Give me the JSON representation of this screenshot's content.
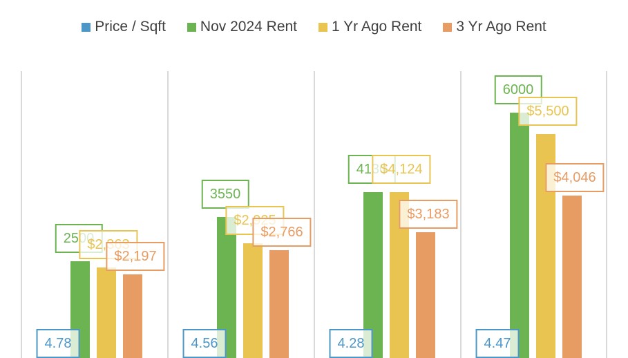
{
  "legend": {
    "items": [
      {
        "label": "Price / Sqft",
        "color": "#4C96C8"
      },
      {
        "label": "Nov 2024 Rent",
        "color": "#6CB451"
      },
      {
        "label": "1 Yr Ago Rent",
        "color": "#E9C451"
      },
      {
        "label": "3 Yr Ago Rent",
        "color": "#E79C64"
      }
    ]
  },
  "chart_data": {
    "type": "bar",
    "title": "",
    "categories": [
      "",
      "",
      "",
      ""
    ],
    "series": [
      {
        "name": "Price / Sqft",
        "color": "#4C96C8",
        "values": [
          4.78,
          4.56,
          4.28,
          4.47
        ],
        "labels": [
          "4.78",
          "4.56",
          "4.28",
          "4.47"
        ]
      },
      {
        "name": "Nov 2024 Rent",
        "color": "#6CB451",
        "values": [
          2500,
          3550,
          4130,
          6000
        ],
        "labels": [
          "2500",
          "3550",
          "4130",
          "6000"
        ]
      },
      {
        "name": "1 Yr Ago Rent",
        "color": "#E9C451",
        "values": [
          2363,
          2925,
          4124,
          5500
        ],
        "labels": [
          "$2,363",
          "$2,925",
          "$4,124",
          "$5,500"
        ]
      },
      {
        "name": "3 Yr Ago Rent",
        "color": "#E79C64",
        "values": [
          2197,
          2766,
          3183,
          4046
        ],
        "labels": [
          "$2,197",
          "$2,766",
          "$3,183",
          "$4,046"
        ]
      }
    ],
    "data_labels": true,
    "data_label_style": "boxed, series-colored border and text, translucent white fill",
    "legend_position": "top",
    "value_axis_visible": false,
    "category_axis_visible": false,
    "gridlines": "vertical category separators only",
    "gridline_color": "#D9D9D9",
    "background_color": "#FFFFFF",
    "note_bottom_cropped": "bars and price/sqft label boxes run off the bottom edge of the image"
  }
}
